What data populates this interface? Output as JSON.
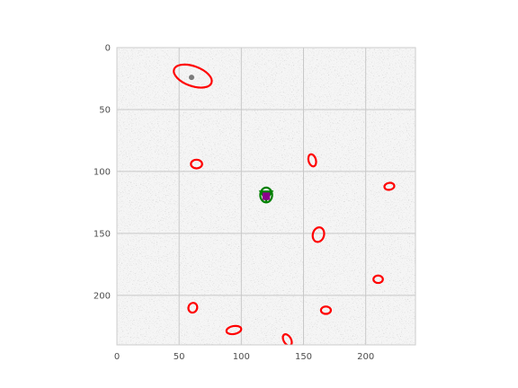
{
  "chart_data": {
    "type": "scatter",
    "title": "",
    "xlabel": "",
    "ylabel": "",
    "xlim": [
      0,
      240
    ],
    "ylim": [
      240,
      0
    ],
    "y_inverted": true,
    "grid": true,
    "background": "noisy grayscale astronomical image",
    "x_ticks": [
      0,
      50,
      100,
      150,
      200
    ],
    "y_ticks": [
      0,
      50,
      100,
      150,
      200
    ],
    "markers": [
      {
        "kind": "ellipse",
        "color": "#ff0000",
        "cx": 61,
        "cy": 23,
        "rx": 16,
        "ry": 8,
        "angle": 20
      },
      {
        "kind": "ellipse",
        "color": "#ff0000",
        "cx": 64,
        "cy": 94,
        "rx": 4.5,
        "ry": 3.5,
        "angle": 0
      },
      {
        "kind": "ellipse",
        "color": "#ff0000",
        "cx": 157,
        "cy": 91,
        "rx": 3,
        "ry": 5,
        "angle": -15
      },
      {
        "kind": "ellipse",
        "color": "#ff0000",
        "cx": 219,
        "cy": 112,
        "rx": 4,
        "ry": 2.8,
        "angle": -10
      },
      {
        "kind": "ellipse",
        "color": "#ff0000",
        "cx": 162,
        "cy": 151,
        "rx": 4.5,
        "ry": 6,
        "angle": 15
      },
      {
        "kind": "ellipse",
        "color": "#ff0000",
        "cx": 210,
        "cy": 187,
        "rx": 3.8,
        "ry": 3,
        "angle": 0
      },
      {
        "kind": "ellipse",
        "color": "#ff0000",
        "cx": 61,
        "cy": 210,
        "rx": 3.5,
        "ry": 4,
        "angle": 20
      },
      {
        "kind": "ellipse",
        "color": "#ff0000",
        "cx": 168,
        "cy": 212,
        "rx": 4,
        "ry": 3,
        "angle": 0
      },
      {
        "kind": "ellipse",
        "color": "#ff0000",
        "cx": 94,
        "cy": 228,
        "rx": 6,
        "ry": 3.2,
        "angle": -10
      },
      {
        "kind": "ellipse",
        "color": "#ff0000",
        "cx": 137,
        "cy": 236,
        "rx": 3,
        "ry": 5,
        "angle": -30
      },
      {
        "kind": "ellipse",
        "color": "#008000",
        "cx": 120,
        "cy": 119,
        "rx": 4.8,
        "ry": 6,
        "angle": 0
      },
      {
        "kind": "triangle",
        "color": "#008000",
        "x": 120,
        "y": 119,
        "size": 6
      },
      {
        "kind": "square",
        "color": "#8b008b",
        "x": 120,
        "y": 120,
        "size": 3
      }
    ]
  }
}
